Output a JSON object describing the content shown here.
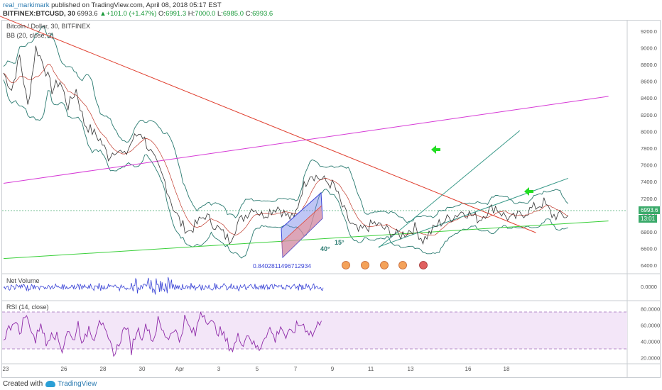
{
  "header": {
    "username": "real_markimark",
    "published_text": " published on TradingView.com, April 08, 2018 05:17 EST",
    "symbol": "BITFINEX:BTCUSD, 30",
    "last": "6993.6",
    "change": "+101.0 (+1.47%)",
    "open_label": "O:",
    "open": "6991.3",
    "high_label": "H:",
    "high": "7000.0",
    "low_label": "L:",
    "low": "6985.0",
    "close_label": "C:",
    "close": "6993.6"
  },
  "pane_labels": {
    "main_title": "Bitcoin / Dollar, 30, BITFINEX",
    "bb": "BB (20, close, 2)",
    "volume": "Net Volume",
    "rsi": "RSI (14, close)"
  },
  "annotations": {
    "fib_value": "0.8402811496712934",
    "angle_40": "40°",
    "angle_15": "15°"
  },
  "price_tags": {
    "last_price": "6993.6",
    "countdown": "13:01"
  },
  "footer": {
    "created_with": "Created with",
    "brand": "TradingView"
  },
  "colors": {
    "price_line": "#333333",
    "bollinger": "#2a7a70",
    "bb_basis": "#c0392b",
    "red_trendline": "#e04030",
    "magenta_trendline": "#d63ad6",
    "green_trendline": "#3ad03a",
    "teal_trendline": "#3a9a8a",
    "channel_blue": "#3a44d6",
    "channel_red": "#f08080",
    "arrow_green": "#22dd22",
    "volume": "#3a44d6",
    "rsi": "#8e2aa8",
    "rsi_band": "#f0e0f6"
  },
  "chart_data": [
    {
      "type": "line",
      "title": "Bitcoin / Dollar, 30, BITFINEX",
      "y_ticks": [
        "9200.0",
        "9000.0",
        "8800.0",
        "8600.0",
        "8400.0",
        "8200.0",
        "8000.0",
        "7800.0",
        "7600.0",
        "7400.0",
        "7200.0",
        "7000.0",
        "6800.0",
        "6600.0",
        "6400.0"
      ],
      "x_ticks": [
        "23",
        "26",
        "28",
        "30",
        "Apr",
        "3",
        "5",
        "7",
        "9",
        "11",
        "13",
        "16",
        "18"
      ],
      "ylim": [
        6250,
        9300
      ],
      "price_series": {
        "name": "BTCUSD",
        "x": [
          0,
          2,
          4,
          6,
          8,
          10,
          12,
          14,
          16,
          18,
          20,
          22,
          24,
          26,
          28,
          30,
          32,
          34,
          36,
          38,
          40,
          42,
          44,
          46,
          48,
          50,
          52,
          54,
          56,
          58,
          60,
          62,
          64,
          66,
          68,
          70,
          72,
          74,
          76,
          78,
          80,
          82,
          84,
          86,
          88,
          90,
          92,
          94,
          96,
          98,
          100,
          102,
          104,
          106,
          108,
          110,
          112,
          114,
          116,
          118,
          120,
          122,
          124,
          126,
          128,
          130,
          132,
          134,
          136,
          138,
          140
        ],
        "y": [
          8700,
          8500,
          8900,
          8300,
          9000,
          8800,
          8500,
          8600,
          8300,
          8500,
          8100,
          8000,
          7900,
          7700,
          7800,
          7700,
          7900,
          8000,
          7800,
          7600,
          7400,
          7100,
          6900,
          6800,
          6900,
          7000,
          6900,
          6800,
          6700,
          6900,
          7000,
          7100,
          7000,
          7050,
          7100,
          7000,
          6950,
          7300,
          7500,
          7450,
          7400,
          7350,
          7100,
          6900,
          6800,
          6850,
          6900,
          6850,
          6800,
          6750,
          6800,
          6850,
          6700,
          6800,
          6900,
          6950,
          7000,
          7050,
          7000,
          6950,
          7050,
          7100,
          7000,
          6950,
          7000,
          7050,
          7100,
          7150,
          7000,
          6990,
          6993.6
        ]
      },
      "last_price": 6993.6,
      "trendlines": [
        {
          "name": "red-descending",
          "from": [
            -2,
            9400
          ],
          "to": [
            132,
            6790
          ]
        },
        {
          "name": "magenta-ascending",
          "from": [
            0,
            7380
          ],
          "to": [
            150,
            8420
          ]
        },
        {
          "name": "green-support",
          "from": [
            0,
            6480
          ],
          "to": [
            150,
            6930
          ]
        },
        {
          "name": "teal-40deg",
          "from": [
            93,
            6610
          ],
          "to": [
            128,
            8010
          ]
        },
        {
          "name": "teal-15deg",
          "from": [
            93,
            6620
          ],
          "to": [
            140,
            7440
          ]
        }
      ],
      "targets": [
        {
          "x": 131,
          "y": 7740
        },
        {
          "x": 143,
          "y": 7210
        }
      ]
    },
    {
      "type": "line",
      "title": "Net Volume",
      "y_ticks": [
        "0.0000"
      ]
    },
    {
      "type": "line",
      "title": "RSI (14, close)",
      "y_ticks": [
        "80.0000",
        "60.0000",
        "40.0000",
        "20.0000"
      ],
      "ylim": [
        15,
        85
      ],
      "bands": [
        30,
        70
      ],
      "series": {
        "x": [
          0,
          2,
          4,
          6,
          8,
          10,
          12,
          14,
          16,
          18,
          20,
          22,
          24,
          26,
          28,
          30,
          32,
          34,
          36,
          38,
          40,
          42,
          44,
          46,
          48,
          50,
          52,
          54,
          56,
          58,
          60,
          62,
          64,
          66,
          68,
          70,
          72,
          74,
          76,
          78,
          80,
          82,
          84,
          86,
          88,
          90,
          92,
          94,
          96,
          98,
          100,
          102,
          104,
          106,
          108,
          110,
          112,
          114,
          116,
          118,
          120
        ],
        "y": [
          45,
          55,
          68,
          50,
          72,
          60,
          40,
          65,
          35,
          55,
          45,
          30,
          55,
          40,
          62,
          35,
          58,
          45,
          70,
          50,
          35,
          25,
          45,
          60,
          30,
          55,
          48,
          60,
          40,
          65,
          50,
          45,
          58,
          40,
          68,
          55,
          48,
          78,
          70,
          62,
          55,
          50,
          38,
          30,
          45,
          40,
          50,
          35,
          30,
          48,
          55,
          42,
          60,
          45,
          50,
          58,
          62,
          55,
          48,
          60,
          75
        ]
      }
    }
  ]
}
